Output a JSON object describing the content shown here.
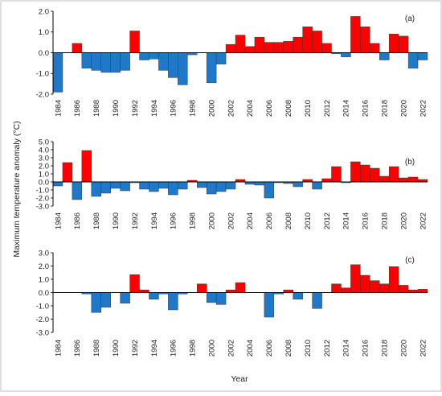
{
  "figure": {
    "ylabel": "Maximum temperature anomaly (°C)",
    "xlabel": "Year",
    "colors": {
      "positive": "#ff0000",
      "negative": "#1f78c8",
      "axis": "#000000",
      "frame": "#bfbfbf"
    }
  },
  "chart_data": [
    {
      "type": "bar",
      "panel_label": "(a)",
      "x": [
        1984,
        1985,
        1986,
        1987,
        1988,
        1989,
        1990,
        1991,
        1992,
        1993,
        1994,
        1995,
        1996,
        1997,
        1998,
        1999,
        2000,
        2001,
        2002,
        2003,
        2004,
        2005,
        2006,
        2007,
        2008,
        2009,
        2010,
        2011,
        2012,
        2013,
        2014,
        2015,
        2016,
        2017,
        2018,
        2019,
        2020,
        2021,
        2022
      ],
      "values": [
        -1.9,
        0.0,
        0.45,
        -0.75,
        -0.85,
        -0.95,
        -0.95,
        -0.85,
        1.05,
        -0.35,
        -0.3,
        -0.85,
        -1.2,
        -1.55,
        -0.1,
        0.0,
        -1.45,
        -0.55,
        0.4,
        0.85,
        0.3,
        0.75,
        0.5,
        0.5,
        0.55,
        0.75,
        1.25,
        1.05,
        0.45,
        -0.05,
        -0.2,
        1.75,
        1.25,
        0.45,
        -0.35,
        0.9,
        0.8,
        -0.75,
        -0.35
      ],
      "xticks": [
        "1984",
        "1986",
        "1988",
        "1990",
        "1992",
        "1994",
        "1996",
        "1998",
        "2000",
        "2002",
        "2004",
        "2006",
        "2008",
        "2010",
        "2012",
        "2014",
        "2016",
        "2018",
        "2020",
        "2022"
      ],
      "yticks": [
        "2.0",
        "1.0",
        "0.0",
        "-1.0",
        "-2.0"
      ],
      "ylim": [
        -2.0,
        2.0
      ]
    },
    {
      "type": "bar",
      "panel_label": "(b)",
      "x": [
        1984,
        1985,
        1986,
        1987,
        1988,
        1989,
        1990,
        1991,
        1992,
        1993,
        1994,
        1995,
        1996,
        1997,
        1998,
        1999,
        2000,
        2001,
        2002,
        2003,
        2004,
        2005,
        2006,
        2007,
        2008,
        2009,
        2010,
        2011,
        2012,
        2013,
        2014,
        2015,
        2016,
        2017,
        2018,
        2019,
        2020,
        2021,
        2022
      ],
      "values": [
        -0.5,
        2.4,
        -2.2,
        3.9,
        -1.8,
        -1.4,
        -0.8,
        -1.1,
        -0.1,
        -0.9,
        -1.2,
        -0.8,
        -1.6,
        -0.9,
        0.2,
        -0.7,
        -1.5,
        -1.2,
        -0.9,
        0.3,
        -0.3,
        -0.4,
        -2.0,
        -0.1,
        -0.2,
        -0.6,
        0.3,
        -0.9,
        0.4,
        1.9,
        -0.1,
        2.5,
        2.1,
        1.7,
        0.7,
        1.9,
        0.5,
        0.6,
        0.3
      ],
      "xticks": [
        "1984",
        "1986",
        "1988",
        "1990",
        "1992",
        "1994",
        "1996",
        "1998",
        "2000",
        "2002",
        "2004",
        "2006",
        "2008",
        "2010",
        "2012",
        "2014",
        "2016",
        "2018",
        "2020",
        "2022"
      ],
      "yticks": [
        "5.0",
        "4.0",
        "3.0",
        "2.0",
        "1.0",
        "0.0",
        "-1.0",
        "-2.0",
        "-3.0"
      ],
      "ylim": [
        -3.0,
        5.0
      ]
    },
    {
      "type": "bar",
      "panel_label": "(c)",
      "x": [
        1984,
        1985,
        1986,
        1987,
        1988,
        1989,
        1990,
        1991,
        1992,
        1993,
        1994,
        1995,
        1996,
        1997,
        1998,
        1999,
        2000,
        2001,
        2002,
        2003,
        2004,
        2005,
        2006,
        2007,
        2008,
        2009,
        2010,
        2011,
        2012,
        2013,
        2014,
        2015,
        2016,
        2017,
        2018,
        2019,
        2020,
        2021,
        2022
      ],
      "values": [
        0.0,
        0.0,
        0.0,
        -0.1,
        -1.5,
        -1.1,
        0.0,
        -0.8,
        1.35,
        0.2,
        -0.5,
        -0.1,
        -1.3,
        -0.1,
        0.0,
        0.65,
        -0.75,
        -0.9,
        0.2,
        0.75,
        0.0,
        0.0,
        -1.85,
        -0.1,
        0.2,
        -0.5,
        0.0,
        -1.2,
        0.0,
        0.65,
        0.35,
        2.1,
        1.3,
        0.9,
        0.65,
        1.95,
        0.55,
        0.2,
        0.25
      ],
      "xticks": [
        "1984",
        "1986",
        "1988",
        "1990",
        "1992",
        "1994",
        "1996",
        "1998",
        "2000",
        "2002",
        "2004",
        "2006",
        "2008",
        "2010",
        "2012",
        "2014",
        "2016",
        "2018",
        "2020",
        "2022"
      ],
      "yticks": [
        "3.0",
        "2.0",
        "1.0",
        "0.0",
        "-1.0",
        "-2.0",
        "-3.0"
      ],
      "ylim": [
        -3.0,
        3.0
      ]
    }
  ]
}
